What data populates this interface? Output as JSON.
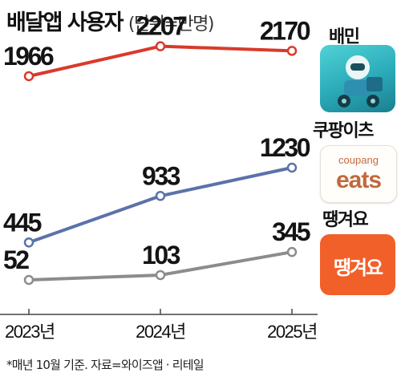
{
  "title": "배달앱 사용자",
  "unit_label": "(단위=만명)",
  "footnote": "*매년 10월 기준. 자료=와이즈앱 · 리테일",
  "brands": {
    "baemin": "배민",
    "coupang": "쿠팡이츠",
    "ddang": "땡겨요"
  },
  "logos": {
    "coupang_small": "coupang",
    "coupang_big": "eats",
    "ddang": "땡겨요"
  },
  "chart_data": {
    "type": "line",
    "categories": [
      "2023년",
      "2024년",
      "2025년"
    ],
    "series": [
      {
        "values": [
          1966,
          2207,
          2170
        ],
        "color": "#d93a2b"
      },
      {
        "values": [
          445,
          933,
          1230
        ],
        "color": "#5b72aa"
      },
      {
        "values": [
          52,
          103,
          345
        ],
        "color": "#8c8c8c"
      }
    ]
  }
}
